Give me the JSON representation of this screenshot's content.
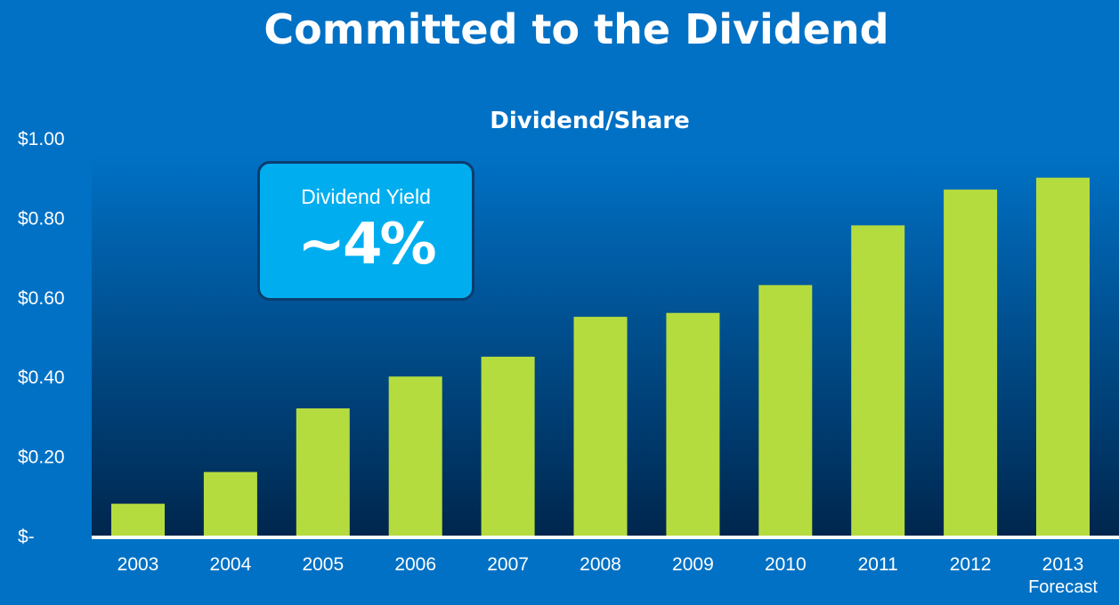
{
  "slide": {
    "title": "Committed to the Dividend"
  },
  "callout": {
    "label": "Dividend Yield",
    "value": "~4%"
  },
  "chart_data": {
    "type": "bar",
    "title": "Dividend/Share",
    "categories": [
      "2003",
      "2004",
      "2005",
      "2006",
      "2007",
      "2008",
      "2009",
      "2010",
      "2011",
      "2012",
      "2013"
    ],
    "category_sublabels": [
      "",
      "",
      "",
      "",
      "",
      "",
      "",
      "",
      "",
      "",
      "Forecast"
    ],
    "values": [
      0.08,
      0.16,
      0.32,
      0.4,
      0.45,
      0.55,
      0.56,
      0.63,
      0.78,
      0.87,
      0.9
    ],
    "ylim": [
      0,
      1.0
    ],
    "yticks": [
      0,
      0.2,
      0.4,
      0.6,
      0.8,
      1.0
    ],
    "ytick_labels": [
      "$-",
      "$0.20",
      "$0.40",
      "$0.60",
      "$0.80",
      "$1.00"
    ],
    "grid": false,
    "bar_color": "#b5dc3f",
    "plot_gradient_top": "#0071c5",
    "plot_gradient_bottom": "#00264d",
    "axis_color": "#ffffff"
  }
}
